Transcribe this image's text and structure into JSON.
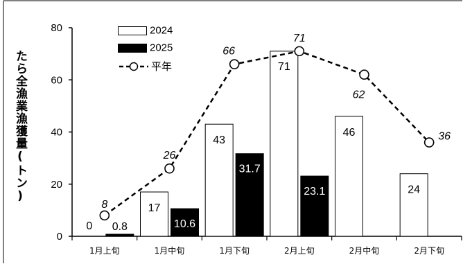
{
  "chart_data": {
    "type": "bar",
    "ylabel": "たら全漁業漁獲量(トン)",
    "ylim": [
      0,
      80
    ],
    "yticks": [
      "0",
      "20",
      "40",
      "60",
      "80"
    ],
    "categories": [
      "1月上旬",
      "1月中旬",
      "1月下旬",
      "2月上旬",
      "2月中旬",
      "2月下旬"
    ],
    "series": [
      {
        "name": "2024",
        "kind": "bar",
        "color": "#ffffff",
        "values": [
          0,
          17,
          43,
          71,
          46,
          24
        ],
        "labels": [
          "0",
          "17",
          "43",
          "71",
          "46",
          "24"
        ]
      },
      {
        "name": "2025",
        "kind": "bar",
        "color": "#000000",
        "values": [
          0.8,
          10.6,
          31.7,
          23.1,
          null,
          null
        ],
        "labels": [
          "0.8",
          "10.6",
          "31.7",
          "23.1",
          "",
          ""
        ]
      },
      {
        "name": "平年",
        "kind": "line",
        "style": "dashed",
        "marker": "circle",
        "values": [
          8,
          26,
          66,
          71,
          62,
          36
        ],
        "labels": [
          "8",
          "26",
          "66",
          "71",
          "62",
          "36"
        ]
      }
    ],
    "legend_position": "top-left",
    "grid": false
  }
}
